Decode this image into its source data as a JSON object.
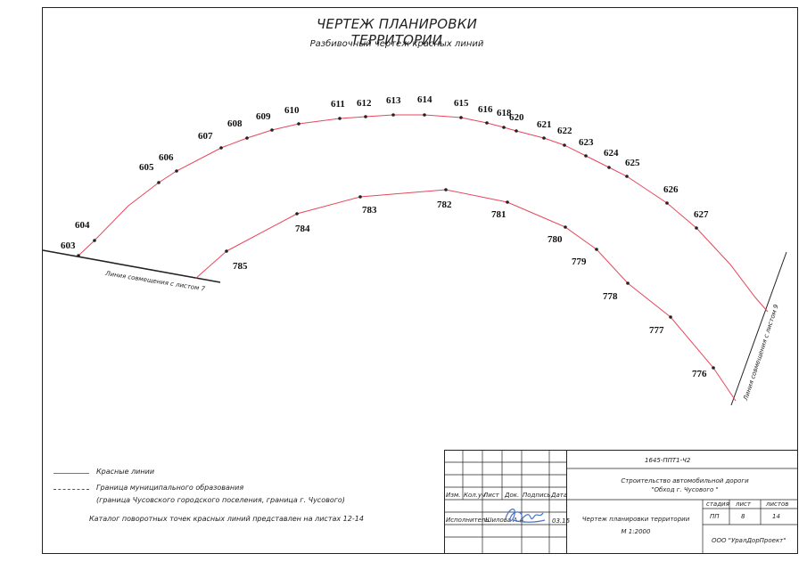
{
  "title": "ЧЕРТЕЖ ПЛАНИРОВКИ ТЕРРИТОРИИ",
  "subtitle": "Разбивочный чертеж красных линий",
  "upper_points": [
    "603",
    "604",
    "605",
    "606",
    "607",
    "608",
    "609",
    "610",
    "611",
    "612",
    "613",
    "614",
    "615",
    "616",
    "618",
    "620",
    "621",
    "622",
    "623",
    "624",
    "625",
    "626",
    "627"
  ],
  "lower_points": [
    "785",
    "784",
    "783",
    "782",
    "781",
    "780",
    "779",
    "778",
    "777",
    "776"
  ],
  "match_line_left": "Линия совмещения с листом 7",
  "match_line_right": "Линия совмещения с листом 9",
  "legend": {
    "red_lines": "Красные линии",
    "municipal_border_line1": "Граница муниципального образования",
    "municipal_border_line2": "(граница Чусовского городского поселения, граница г. Чусового)"
  },
  "catalog_note": "Каталог поворотных точек красных линий представлен на листах 12-14",
  "stamp": {
    "code": "1645-ППТ1-Ч2",
    "project_line1": "Строительство автомобильной дороги",
    "project_line2": "\"Обход г. Чусового \"",
    "header_cols": [
      "Изм.",
      "Кол.уч",
      "Лист",
      "Док.",
      "Подпись",
      "Дата"
    ],
    "executor_role": "Исполнитель",
    "executor_name": "Шилова А.А.",
    "date": "03.15",
    "drawing_name": "Чертеж планировки территории",
    "scale": "М 1:2000",
    "stage_label": "стадия",
    "sheet_label": "лист",
    "sheets_label": "листов",
    "stage_value": "ПП",
    "sheet_value": "8",
    "sheets_value": "14",
    "organization": "ООО \"УралДорПроект\""
  },
  "colors": {
    "red_line": "#e8465b",
    "ink": "#222222"
  }
}
